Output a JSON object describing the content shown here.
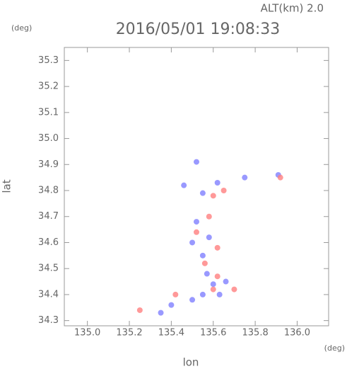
{
  "chart_data": {
    "type": "scatter",
    "title": "2016/05/01 19:08:33",
    "subtitle": "ALT(km) 2.0",
    "y_unit": "(deg)",
    "x_unit": "(deg)",
    "x_label": "lon",
    "y_label": "lat",
    "xlim": [
      134.89,
      136.15
    ],
    "ylim": [
      34.28,
      35.35
    ],
    "xticks": [
      {
        "value": 135.0,
        "label": "135.0"
      },
      {
        "value": 135.2,
        "label": "135.2"
      },
      {
        "value": 135.4,
        "label": "135.4"
      },
      {
        "value": 135.6,
        "label": "135.6"
      },
      {
        "value": 135.8,
        "label": "135.8"
      },
      {
        "value": 136.0,
        "label": "136.0"
      }
    ],
    "yticks": [
      {
        "value": 34.3,
        "label": "34.3"
      },
      {
        "value": 34.4,
        "label": "34.4"
      },
      {
        "value": 34.5,
        "label": "34.5"
      },
      {
        "value": 34.6,
        "label": "34.6"
      },
      {
        "value": 34.7,
        "label": "34.7"
      },
      {
        "value": 34.8,
        "label": "34.8"
      },
      {
        "value": 34.9,
        "label": "34.9"
      },
      {
        "value": 35.0,
        "label": "35.0"
      },
      {
        "value": 35.1,
        "label": "35.1"
      },
      {
        "value": 35.2,
        "label": "35.2"
      },
      {
        "value": 35.3,
        "label": "35.3"
      }
    ],
    "series": [
      {
        "color": "#8080ff",
        "x": [
          135.52,
          135.46,
          135.55,
          135.62,
          135.75,
          135.91,
          135.52,
          135.58,
          135.5,
          135.55,
          135.57,
          135.6,
          135.55,
          135.5,
          135.4,
          135.35,
          135.63,
          135.66
        ],
        "values": [
          34.91,
          34.82,
          34.79,
          34.83,
          34.85,
          34.86,
          34.68,
          34.62,
          34.6,
          34.55,
          34.48,
          34.44,
          34.4,
          34.38,
          34.36,
          34.33,
          34.4,
          34.45
        ]
      },
      {
        "color": "#ff8080",
        "x": [
          135.6,
          135.65,
          135.58,
          135.52,
          135.62,
          135.56,
          135.62,
          135.6,
          135.42,
          135.25,
          135.7,
          135.92
        ],
        "values": [
          34.78,
          34.8,
          34.7,
          34.64,
          34.58,
          34.52,
          34.47,
          34.42,
          34.4,
          34.34,
          34.42,
          34.85
        ]
      }
    ]
  }
}
